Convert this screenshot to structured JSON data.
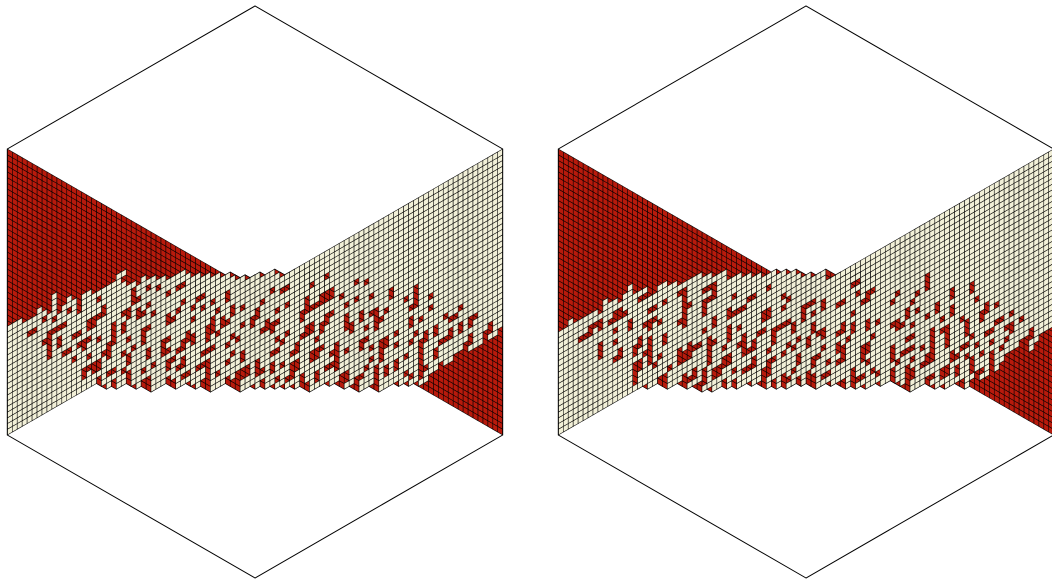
{
  "figure": {
    "panels": [
      {
        "label": ""
      },
      {
        "label": ""
      }
    ],
    "tile_colors": {
      "top": "#0d0d8a",
      "left": "#f2f0d8",
      "right": "#b81a0c",
      "outline": "#000000"
    },
    "hexagon_side_tiles": 50
  }
}
